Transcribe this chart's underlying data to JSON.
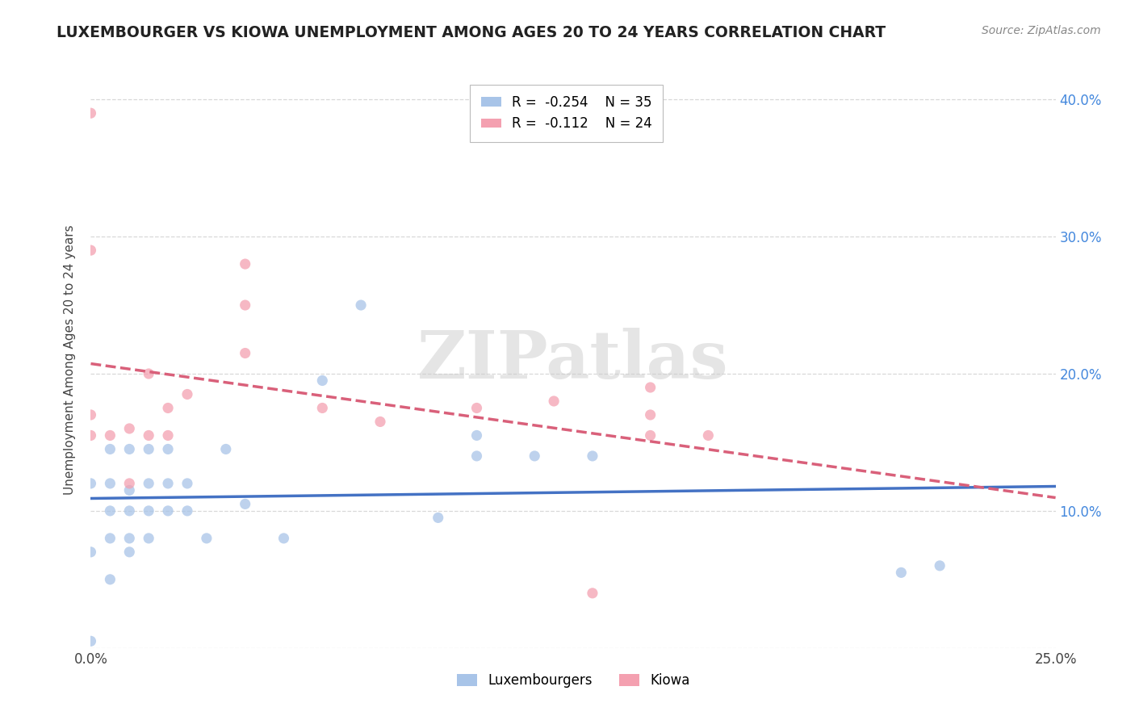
{
  "title": "LUXEMBOURGER VS KIOWA UNEMPLOYMENT AMONG AGES 20 TO 24 YEARS CORRELATION CHART",
  "source": "Source: ZipAtlas.com",
  "ylabel": "Unemployment Among Ages 20 to 24 years",
  "xlabel": "",
  "xlim": [
    0.0,
    0.25
  ],
  "ylim": [
    0.0,
    0.42
  ],
  "xticks": [
    0.0,
    0.05,
    0.1,
    0.15,
    0.2,
    0.25
  ],
  "xticklabels": [
    "0.0%",
    "",
    "",
    "",
    "",
    "25.0%"
  ],
  "yticks": [
    0.0,
    0.1,
    0.2,
    0.3,
    0.4
  ],
  "left_yticklabels": [
    "",
    "",
    "",
    "",
    ""
  ],
  "right_yticklabels": [
    "",
    "10.0%",
    "20.0%",
    "30.0%",
    "40.0%"
  ],
  "luxembourger_R": "-0.254",
  "luxembourger_N": "35",
  "kiowa_R": "-0.112",
  "kiowa_N": "24",
  "luxembourger_color": "#a8c4e8",
  "kiowa_color": "#f4a0b0",
  "luxembourger_line_color": "#4472c4",
  "kiowa_line_color": "#d9607a",
  "watermark_text": "ZIPatlas",
  "grid_color": "#d8d8d8",
  "luxembourger_scatter_x": [
    0.0,
    0.0,
    0.0,
    0.005,
    0.005,
    0.005,
    0.005,
    0.005,
    0.01,
    0.01,
    0.01,
    0.01,
    0.01,
    0.015,
    0.015,
    0.015,
    0.015,
    0.02,
    0.02,
    0.02,
    0.025,
    0.025,
    0.03,
    0.035,
    0.04,
    0.05,
    0.06,
    0.07,
    0.09,
    0.1,
    0.1,
    0.115,
    0.13,
    0.21,
    0.22
  ],
  "luxembourger_scatter_y": [
    0.005,
    0.07,
    0.12,
    0.05,
    0.08,
    0.1,
    0.12,
    0.145,
    0.07,
    0.08,
    0.1,
    0.115,
    0.145,
    0.08,
    0.1,
    0.12,
    0.145,
    0.1,
    0.12,
    0.145,
    0.1,
    0.12,
    0.08,
    0.145,
    0.105,
    0.08,
    0.195,
    0.25,
    0.095,
    0.14,
    0.155,
    0.14,
    0.14,
    0.055,
    0.06
  ],
  "kiowa_scatter_x": [
    0.0,
    0.0,
    0.0,
    0.0,
    0.005,
    0.01,
    0.01,
    0.015,
    0.015,
    0.02,
    0.02,
    0.025,
    0.04,
    0.04,
    0.04,
    0.06,
    0.075,
    0.1,
    0.12,
    0.13,
    0.145,
    0.145,
    0.145,
    0.16
  ],
  "kiowa_scatter_y": [
    0.155,
    0.17,
    0.29,
    0.39,
    0.155,
    0.12,
    0.16,
    0.155,
    0.2,
    0.155,
    0.175,
    0.185,
    0.215,
    0.25,
    0.28,
    0.175,
    0.165,
    0.175,
    0.18,
    0.04,
    0.155,
    0.17,
    0.19,
    0.155
  ]
}
